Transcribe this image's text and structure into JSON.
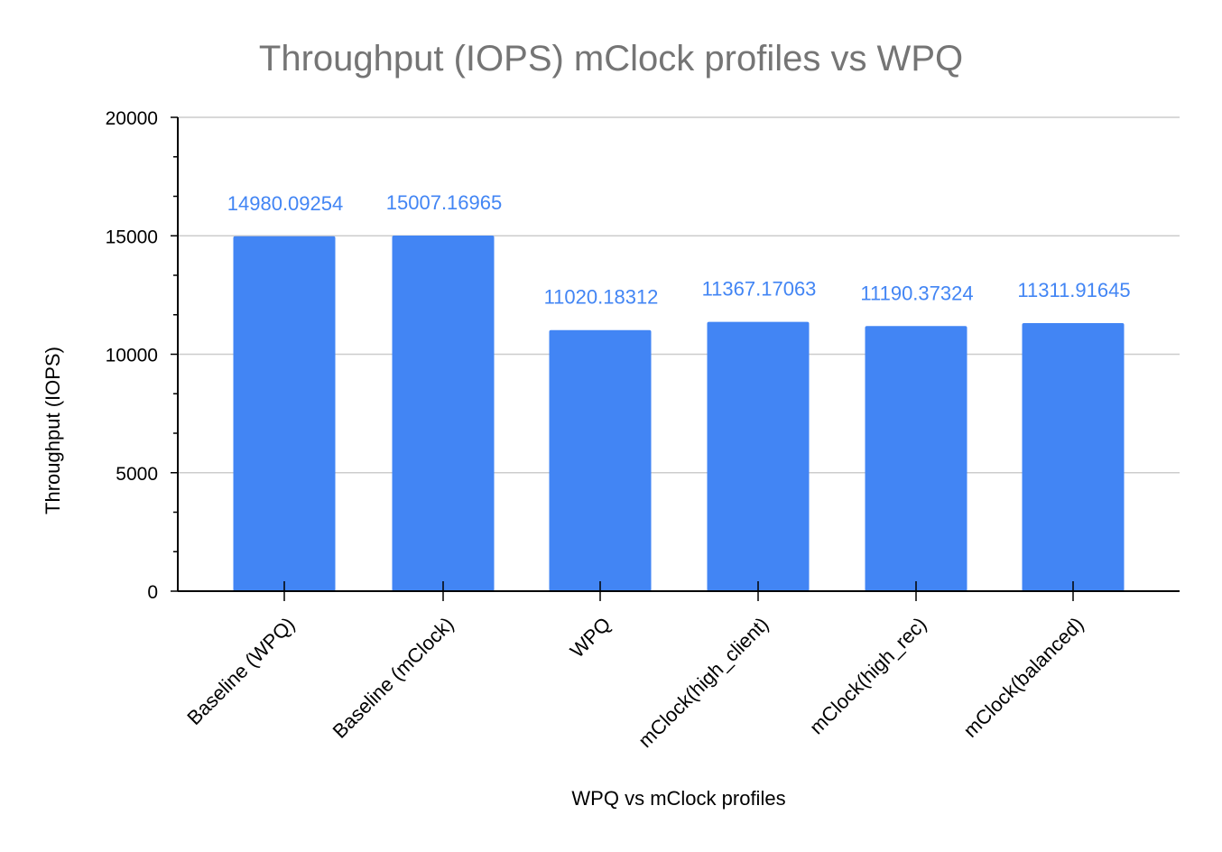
{
  "chart_data": {
    "type": "bar",
    "title": "Throughput (IOPS) mClock profiles vs WPQ",
    "xlabel": "WPQ vs mClock profiles",
    "ylabel": "Throughput (IOPS)",
    "ylim": [
      0,
      20000
    ],
    "yticks": [
      "0",
      "5000",
      "10000",
      "15000",
      "20000"
    ],
    "grid": true,
    "legend": "none",
    "categories": [
      "Baseline (WPQ)",
      "Baseline (mClock)",
      "WPQ",
      "mClock(high_client)",
      "mClock(high_rec)",
      "mClock(balanced)"
    ],
    "values": [
      14980.09254,
      15007.16965,
      11020.18312,
      11367.17063,
      11190.37324,
      11311.91645
    ],
    "data_labels": [
      "14980.09254",
      "15007.16965",
      "11020.18312",
      "11367.17063",
      "11190.37324",
      "11311.91645"
    ],
    "colors": {
      "bar": "#4285f4",
      "data_label": "#4285f4",
      "title": "#757575",
      "grid": "#cccccc",
      "axis": "#000000"
    }
  }
}
